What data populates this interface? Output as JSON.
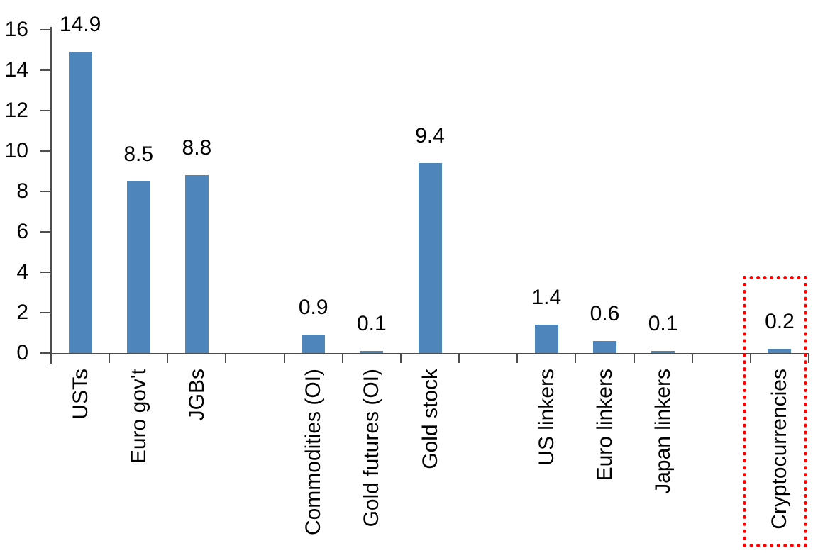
{
  "chart_data": {
    "type": "bar",
    "title": "",
    "xlabel": "",
    "ylabel": "",
    "categories": [
      "USTs",
      "Euro gov't",
      "JGBs",
      "",
      "Commodities (OI)",
      "Gold futures (OI)",
      "Gold stock",
      "",
      "US linkers",
      "Euro linkers",
      "Japan linkers",
      "",
      "Cryptocurrencies"
    ],
    "values": [
      14.9,
      8.5,
      8.8,
      null,
      0.9,
      0.1,
      9.4,
      null,
      1.4,
      0.6,
      0.1,
      null,
      0.2
    ],
    "data_labels": [
      "14.9",
      "8.5",
      "8.8",
      null,
      "0.9",
      "0.1",
      "9.4",
      null,
      "1.4",
      "0.6",
      "0.1",
      null,
      "0.2"
    ],
    "yticks": [
      "0",
      "2",
      "4",
      "6",
      "8",
      "10",
      "12",
      "14",
      "16"
    ],
    "ylim": [
      0,
      16
    ],
    "grid": false,
    "legend": false,
    "bar_color": "#4e86bc",
    "axis_color": "#4d4d4d",
    "text_color": "#000000",
    "background_color": "#ffffff",
    "highlight": {
      "target_category": "Cryptocurrencies",
      "shape": "dotted-rectangle",
      "color": "#ff0000"
    }
  }
}
